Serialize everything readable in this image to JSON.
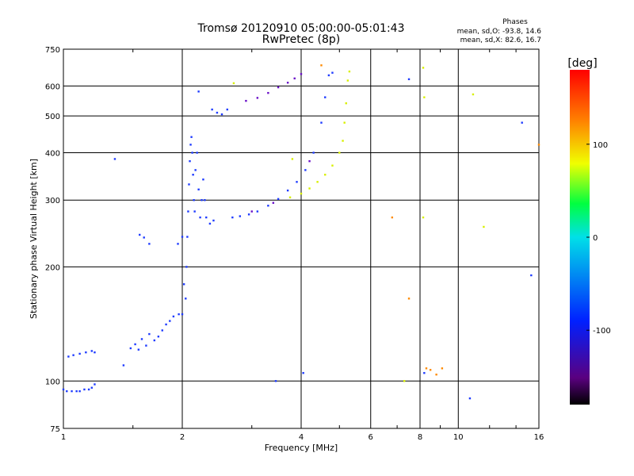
{
  "chart_data": {
    "type": "scatter",
    "title": "Tromsø 20120910 05:00:00-05:01:43",
    "subtitle": "RwPretec (8p)",
    "xlabel": "Frequency [MHz]",
    "ylabel": "Stationary phase Virtual Height [km]",
    "x_scale": "log",
    "y_scale": "log",
    "xlim": [
      1,
      16
    ],
    "ylim": [
      75,
      750
    ],
    "x_ticks": [
      1,
      2,
      4,
      6,
      8,
      10,
      16
    ],
    "y_ticks": [
      75,
      100,
      200,
      300,
      400,
      500,
      600,
      750
    ],
    "grid": true,
    "phases_info": {
      "title": "Phases",
      "line1": "mean, sd,O: -93.8, 14.6",
      "line2": "mean, sd,X:  82.6, 16.7"
    },
    "colorbar": {
      "label": "[deg]",
      "range": [
        -180,
        180
      ],
      "ticks": [
        100,
        0,
        -100
      ],
      "colors": [
        "#000000",
        "#7000a0",
        "#0020ff",
        "#00d8ff",
        "#00ff60",
        "#f0ff00",
        "#ff8000",
        "#ff0000"
      ]
    },
    "series": [
      {
        "values": [
          [
            1.0,
            95
          ],
          [
            1.02,
            94
          ],
          [
            1.05,
            94
          ],
          [
            1.08,
            94
          ],
          [
            1.1,
            94
          ],
          [
            1.13,
            95
          ],
          [
            1.16,
            95
          ],
          [
            1.18,
            96
          ],
          [
            1.2,
            98
          ],
          [
            1.03,
            116
          ],
          [
            1.06,
            117
          ],
          [
            1.1,
            118
          ],
          [
            1.14,
            119
          ],
          [
            1.18,
            120
          ],
          [
            1.2,
            119
          ],
          [
            1.35,
            385
          ],
          [
            1.42,
            110
          ],
          [
            1.48,
            122
          ],
          [
            1.52,
            125
          ],
          [
            1.55,
            121
          ],
          [
            1.58,
            129
          ],
          [
            1.62,
            124
          ],
          [
            1.65,
            133
          ],
          [
            1.7,
            128
          ],
          [
            1.74,
            131
          ],
          [
            1.78,
            136
          ],
          [
            1.82,
            141
          ],
          [
            1.86,
            144
          ],
          [
            1.9,
            148
          ],
          [
            1.96,
            150
          ],
          [
            2.0,
            150
          ],
          [
            1.56,
            243
          ],
          [
            1.6,
            239
          ],
          [
            1.65,
            230
          ],
          [
            1.95,
            230
          ],
          [
            2.0,
            240
          ],
          [
            2.02,
            180
          ],
          [
            2.04,
            165
          ],
          [
            2.05,
            200
          ],
          [
            2.06,
            240
          ],
          [
            2.07,
            280
          ],
          [
            2.08,
            330
          ],
          [
            2.09,
            380
          ],
          [
            2.1,
            420
          ],
          [
            2.11,
            440
          ],
          [
            2.12,
            400
          ],
          [
            2.13,
            350
          ],
          [
            2.14,
            300
          ],
          [
            2.15,
            280
          ],
          [
            2.16,
            360
          ],
          [
            2.18,
            400
          ],
          [
            2.2,
            320
          ],
          [
            2.22,
            270
          ],
          [
            2.24,
            300
          ],
          [
            2.26,
            340
          ],
          [
            2.28,
            300
          ],
          [
            2.3,
            270
          ],
          [
            2.35,
            260
          ],
          [
            2.4,
            265
          ],
          [
            2.2,
            580
          ],
          [
            2.38,
            520
          ],
          [
            2.45,
            510
          ],
          [
            2.52,
            505
          ],
          [
            2.6,
            520
          ],
          [
            2.68,
            270
          ],
          [
            2.8,
            272
          ],
          [
            2.95,
            275
          ],
          [
            3.1,
            280
          ],
          [
            3.3,
            290
          ],
          [
            3.5,
            302
          ],
          [
            3.7,
            318
          ],
          [
            3.9,
            335
          ],
          [
            4.1,
            360
          ],
          [
            4.3,
            400
          ],
          [
            4.5,
            480
          ],
          [
            4.6,
            560
          ],
          [
            4.7,
            640
          ],
          [
            4.8,
            650
          ],
          [
            3.45,
            100
          ],
          [
            4.05,
            105
          ],
          [
            7.5,
            625
          ],
          [
            8.2,
            105
          ],
          [
            10.7,
            90
          ],
          [
            14.5,
            480
          ],
          [
            15.3,
            190
          ]
        ]
      },
      {
        "values": [
          [
            2.9,
            548
          ],
          [
            3.1,
            558
          ],
          [
            3.3,
            575
          ],
          [
            3.5,
            595
          ],
          [
            3.7,
            612
          ],
          [
            3.85,
            628
          ],
          [
            4.0,
            645
          ],
          [
            3.0,
            280
          ],
          [
            3.4,
            295
          ],
          [
            4.2,
            380
          ]
        ]
      },
      {
        "values": [
          [
            3.75,
            305
          ],
          [
            4.0,
            312
          ],
          [
            4.2,
            322
          ],
          [
            4.4,
            335
          ],
          [
            4.6,
            350
          ],
          [
            4.8,
            370
          ],
          [
            5.0,
            400
          ],
          [
            5.1,
            430
          ],
          [
            5.15,
            480
          ],
          [
            5.2,
            540
          ],
          [
            5.25,
            620
          ],
          [
            5.3,
            655
          ],
          [
            2.7,
            610
          ],
          [
            3.8,
            385
          ],
          [
            8.15,
            670
          ],
          [
            8.2,
            560
          ],
          [
            10.9,
            570
          ],
          [
            11.6,
            255
          ],
          [
            7.3,
            100
          ],
          [
            8.15,
            270
          ]
        ]
      },
      {
        "values": [
          [
            4.5,
            680
          ],
          [
            6.8,
            270
          ],
          [
            7.5,
            165
          ],
          [
            8.3,
            108
          ],
          [
            8.5,
            107
          ],
          [
            8.8,
            104
          ],
          [
            9.1,
            108
          ],
          [
            16.0,
            420
          ]
        ]
      }
    ]
  }
}
